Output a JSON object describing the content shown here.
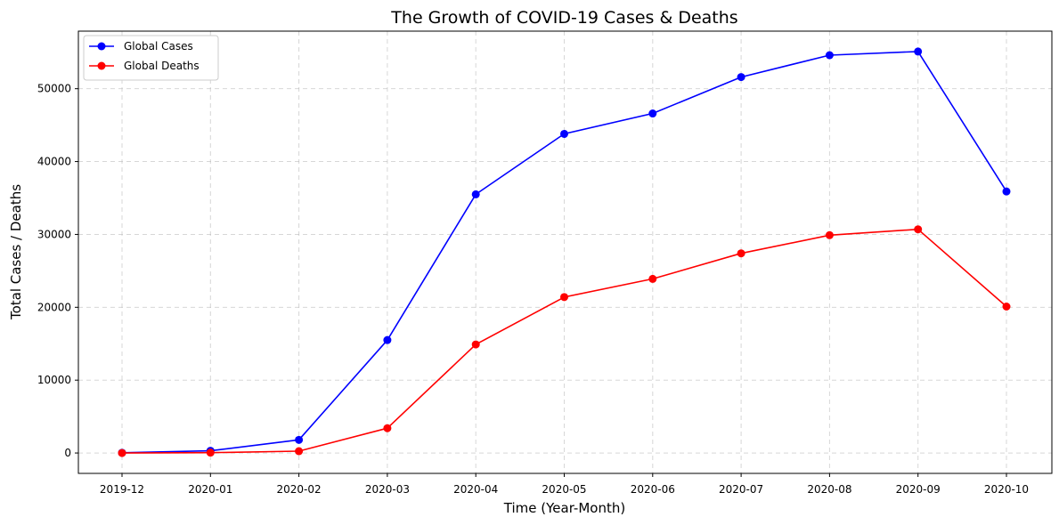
{
  "chart_data": {
    "type": "line",
    "title": "The Growth of COVID-19 Cases & Deaths",
    "xlabel": "Time (Year-Month)",
    "ylabel": "Total Cases / Deaths",
    "categories": [
      "2019-12",
      "2020-01",
      "2020-02",
      "2020-03",
      "2020-04",
      "2020-05",
      "2020-06",
      "2020-07",
      "2020-08",
      "2020-09",
      "2020-10"
    ],
    "y_ticks": [
      0,
      10000,
      20000,
      30000,
      40000,
      50000
    ],
    "ylim": [
      -2800,
      57900
    ],
    "grid": true,
    "legend_position": "upper-left",
    "series": [
      {
        "name": "Global Cases",
        "color": "#0000ff",
        "values": [
          30,
          300,
          1800,
          15500,
          35500,
          43800,
          46600,
          51600,
          54600,
          55100,
          35900
        ]
      },
      {
        "name": "Global Deaths",
        "color": "#ff0000",
        "values": [
          0,
          50,
          250,
          3400,
          14900,
          21400,
          23900,
          27400,
          29900,
          30700,
          20100
        ]
      }
    ]
  }
}
